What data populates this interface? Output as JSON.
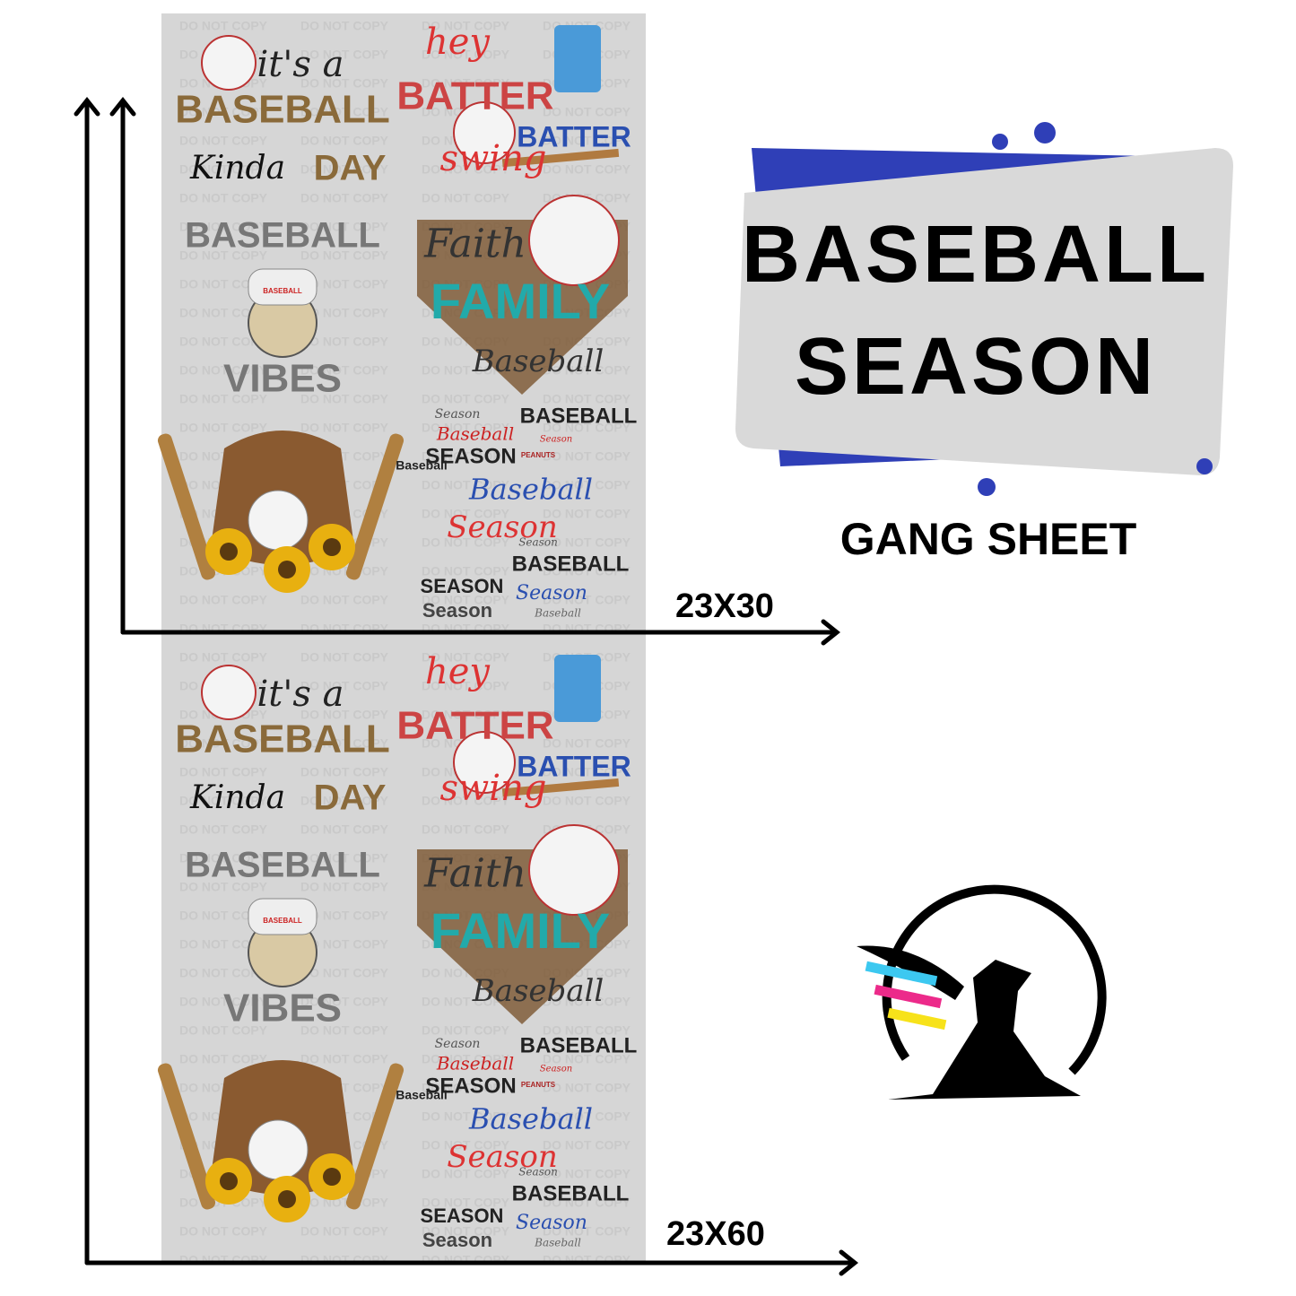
{
  "header": {
    "title_lines": [
      "BASEBALL",
      "SEASON"
    ],
    "subtitle": "GANG SHEET"
  },
  "sizes": [
    "23X30",
    "23X60"
  ],
  "watermark": "DO NOT COPY",
  "designs": [
    {
      "lines": [
        "it's a",
        "BASEBALL",
        "Kinda",
        "DAY"
      ]
    },
    {
      "lines": [
        "hey",
        "BATTER",
        "BATTER",
        "swing"
      ]
    },
    {
      "lines": [
        "BASEBALL",
        "BASEBALL",
        "VIBES"
      ]
    },
    {
      "lines": [
        "Faith",
        "FAMILY",
        "Baseball"
      ]
    },
    {
      "lines": []
    },
    {
      "lines": [
        "Season",
        "BASEBALL",
        "Baseball",
        "Season",
        "SEASON",
        "PEANUTS",
        "Baseball",
        "Baseball",
        "Season",
        "Season",
        "BASEBALL",
        "SEASON",
        "Season",
        "Season",
        "Baseball"
      ]
    }
  ]
}
